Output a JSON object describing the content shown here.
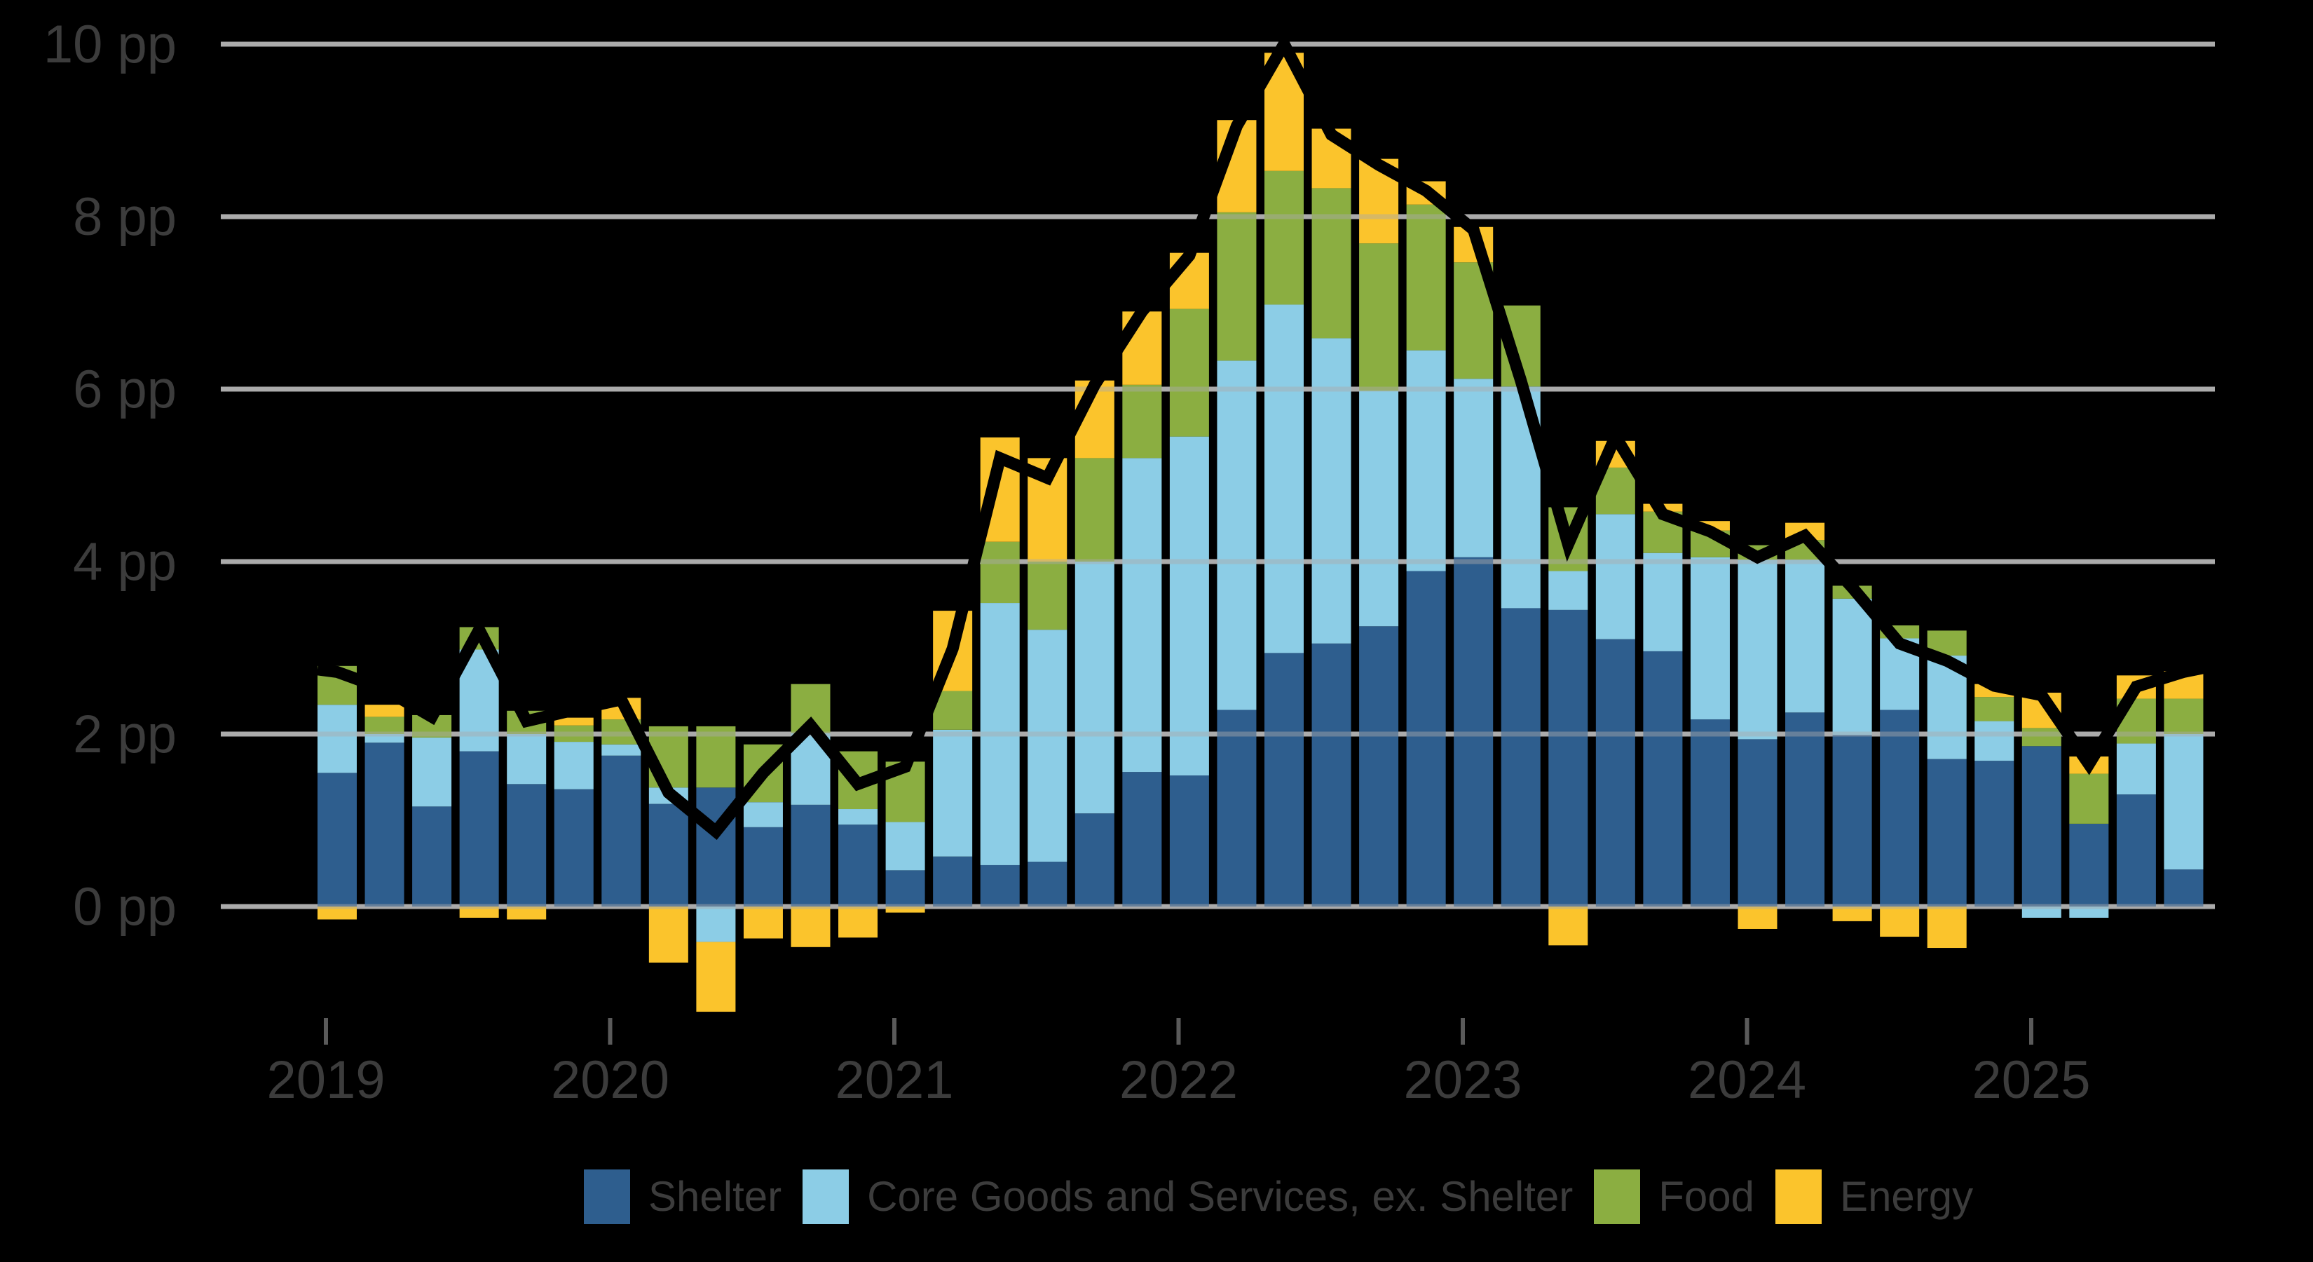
{
  "chart_data": {
    "type": "bar",
    "stacked": true,
    "title": "",
    "unit": "pp",
    "grid": true,
    "legend_position": "bottom",
    "ylim": [
      -1.6,
      10.2
    ],
    "yticks": [
      0,
      2,
      4,
      6,
      8,
      10
    ],
    "ytick_labels": [
      "0 pp",
      "2 pp",
      "4 pp",
      "6 pp",
      "8 pp",
      "10 pp"
    ],
    "xtick_labels": [
      "2019",
      "2020",
      "2021",
      "2022",
      "2023",
      "2024",
      "2025"
    ],
    "categories": [
      "Jan 2019",
      "Mar 2019",
      "May 2019",
      "Jul 2019",
      "Sep 2019",
      "Nov 2019",
      "Jan 2020",
      "Mar 2020",
      "May 2020",
      "Jul 2020",
      "Sep 2020",
      "Nov 2020",
      "Jan 2021",
      "Mar 2021",
      "May 2021",
      "Jul 2021",
      "Sep 2021",
      "Nov 2021",
      "Jan 2022",
      "Mar 2022",
      "May 2022",
      "Jul 2022",
      "Sep 2022",
      "Nov 2022",
      "Jan 2023",
      "Mar 2023",
      "May 2023",
      "Jul 2023",
      "Sep 2023",
      "Nov 2023",
      "Jan 2024",
      "Mar 2024",
      "May 2024",
      "Jul 2024",
      "Sep 2024",
      "Nov 2024",
      "Jan 2025",
      "Mar 2025",
      "May 2025",
      "Jul 2025"
    ],
    "series": [
      {
        "name": "Shelter",
        "color": "#2E5E8E",
        "values": [
          1.55,
          1.9,
          1.16,
          1.8,
          1.42,
          1.36,
          1.75,
          1.19,
          1.38,
          0.92,
          1.18,
          0.95,
          0.42,
          0.58,
          0.48,
          0.52,
          1.08,
          1.56,
          1.52,
          2.28,
          2.94,
          3.05,
          3.25,
          3.89,
          4.05,
          3.46,
          3.44,
          3.1,
          2.96,
          2.17,
          1.94,
          2.25,
          1.99,
          2.28,
          1.71,
          1.69,
          1.86,
          0.96,
          1.3,
          0.43
        ]
      },
      {
        "name": "Core Goods and Services, ex. Shelter",
        "color": "#8CCDE6",
        "values": [
          0.79,
          0.1,
          0.8,
          1.18,
          0.58,
          0.55,
          0.13,
          0.19,
          -0.41,
          0.29,
          0.83,
          0.18,
          0.56,
          1.47,
          3.04,
          2.69,
          2.92,
          3.64,
          3.93,
          4.05,
          4.04,
          3.54,
          2.73,
          2.56,
          2.07,
          2.57,
          0.45,
          1.45,
          1.14,
          1.88,
          2.08,
          1.77,
          1.58,
          0.83,
          1.2,
          0.46,
          -0.13,
          -0.13,
          0.59,
          1.57
        ]
      },
      {
        "name": "Food",
        "color": "#8BAE41",
        "values": [
          0.45,
          0.2,
          0.26,
          0.26,
          0.27,
          0.19,
          0.29,
          0.71,
          0.71,
          0.67,
          0.57,
          0.67,
          0.7,
          0.45,
          0.71,
          0.79,
          1.2,
          0.85,
          1.48,
          1.72,
          1.55,
          1.74,
          1.71,
          1.69,
          1.35,
          0.94,
          0.74,
          0.54,
          0.48,
          0.31,
          0.17,
          0.23,
          0.15,
          0.15,
          0.29,
          0.28,
          0.21,
          0.58,
          0.52,
          0.41
        ]
      },
      {
        "name": "Energy",
        "color": "#FBC42C",
        "values": [
          -0.15,
          0.14,
          0.0,
          -0.13,
          -0.15,
          0.09,
          0.25,
          -0.65,
          -0.81,
          -0.37,
          -0.47,
          -0.36,
          -0.07,
          0.93,
          1.21,
          1.2,
          0.9,
          0.85,
          0.65,
          1.07,
          1.37,
          0.69,
          0.98,
          0.27,
          0.41,
          0.0,
          -0.45,
          0.31,
          0.09,
          0.11,
          -0.26,
          0.2,
          -0.17,
          -0.35,
          -0.48,
          0.15,
          0.41,
          0.2,
          0.27,
          0.32
        ]
      }
    ],
    "line_series": {
      "name": "Total",
      "color": "#000000",
      "values": [
        2.72,
        2.52,
        2.2,
        3.21,
        2.15,
        2.28,
        2.4,
        1.32,
        0.87,
        1.55,
        2.1,
        1.42,
        1.62,
        2.99,
        5.2,
        4.97,
        6.05,
        6.9,
        7.55,
        9.05,
        10.0,
        8.95,
        8.6,
        8.3,
        7.85,
        6.1,
        4.2,
        5.45,
        4.55,
        4.35,
        4.05,
        4.3,
        3.7,
        3.05,
        2.85,
        2.56,
        2.45,
        1.65,
        2.55,
        2.72
      ]
    }
  },
  "legend": {
    "items": [
      {
        "label": "Shelter",
        "color": "#2E5E8E"
      },
      {
        "label": "Core Goods and Services, ex. Shelter",
        "color": "#8CCDE6"
      },
      {
        "label": "Food",
        "color": "#8BAE41"
      },
      {
        "label": "Energy",
        "color": "#FBC42C"
      }
    ]
  },
  "colors": {
    "background": "#000000",
    "gridline": "#ABABAB",
    "axis_text": "#3C3C3C",
    "tick_mark": "#5A5A5A",
    "total_line": "#000000"
  }
}
